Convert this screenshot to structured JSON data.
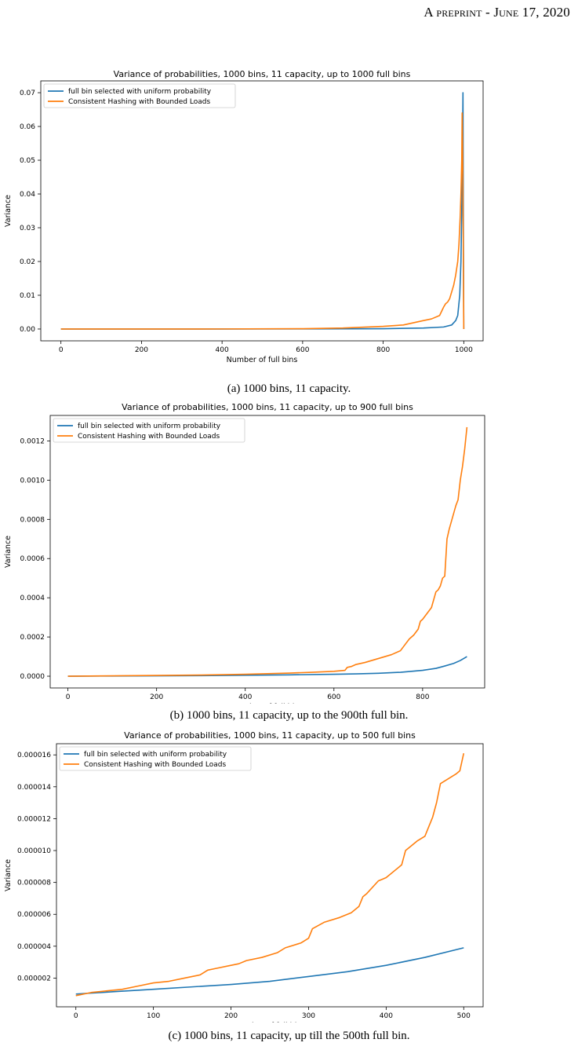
{
  "header": {
    "text": "A preprint - June 17, 2020"
  },
  "chart_data": [
    {
      "type": "line",
      "title": "Variance of probabilities, 1000 bins, 11 capacity, up to 1000 full bins",
      "xlabel": "Number of full bins",
      "ylabel": "Variance",
      "xlim": [
        -50,
        1048
      ],
      "ylim": [
        -0.0035,
        0.0735
      ],
      "xticks": [
        0,
        200,
        400,
        600,
        800,
        1000
      ],
      "xtick_labels": [
        "0",
        "200",
        "400",
        "600",
        "800",
        "1000"
      ],
      "yticks": [
        0.0,
        0.01,
        0.02,
        0.03,
        0.04,
        0.05,
        0.06,
        0.07
      ],
      "ytick_labels": [
        "0.00",
        "0.01",
        "0.02",
        "0.03",
        "0.04",
        "0.05",
        "0.06",
        "0.07"
      ],
      "legend": "top-left",
      "grid": false,
      "series": [
        {
          "name": "full bin selected with uniform probability",
          "color": "#1f77b4",
          "x": [
            0,
            200,
            400,
            600,
            800,
            900,
            950,
            970,
            980,
            985,
            990,
            993,
            995,
            997,
            998,
            999,
            1000
          ],
          "y": [
            0.0,
            0.0,
            1e-05,
            2e-05,
            0.0001,
            0.0003,
            0.0006,
            0.0012,
            0.0025,
            0.004,
            0.01,
            0.02,
            0.035,
            0.055,
            0.07,
            0.03,
            0.0
          ]
        },
        {
          "name": "Consistent Hashing with Bounded Loads",
          "color": "#ff7f0e",
          "x": [
            0,
            200,
            400,
            600,
            700,
            800,
            850,
            900,
            920,
            940,
            950,
            955,
            960,
            965,
            970,
            975,
            980,
            985,
            988,
            991,
            993,
            995,
            996,
            997,
            998,
            999,
            1000
          ],
          "y": [
            0.0,
            0.0,
            2e-05,
            0.0001,
            0.0003,
            0.0008,
            0.0012,
            0.0025,
            0.003,
            0.004,
            0.0065,
            0.0075,
            0.008,
            0.009,
            0.011,
            0.013,
            0.016,
            0.02,
            0.025,
            0.033,
            0.04,
            0.05,
            0.064,
            0.055,
            0.04,
            0.02,
            0.0
          ]
        }
      ]
    },
    {
      "type": "line",
      "title": "Variance of probabilities, 1000 bins, 11 capacity, up to 900 full bins",
      "xlabel": "Number of full bins",
      "ylabel": "Variance",
      "xlim": [
        -40,
        940
      ],
      "ylim": [
        -6e-05,
        0.00133
      ],
      "xticks": [
        0,
        200,
        400,
        600,
        800
      ],
      "xtick_labels": [
        "0",
        "200",
        "400",
        "600",
        "800"
      ],
      "yticks": [
        0.0,
        0.0002,
        0.0004,
        0.0006,
        0.0008,
        0.001,
        0.0012
      ],
      "ytick_labels": [
        "0.0000",
        "0.0002",
        "0.0004",
        "0.0006",
        "0.0008",
        "0.0010",
        "0.0012"
      ],
      "legend": "top-left",
      "grid": false,
      "series": [
        {
          "name": "full bin selected with uniform probability",
          "color": "#1f77b4",
          "x": [
            0,
            100,
            200,
            300,
            400,
            500,
            600,
            650,
            700,
            750,
            800,
            830,
            850,
            870,
            885,
            900
          ],
          "y": [
            0.0,
            1e-06,
            2e-06,
            3e-06,
            5e-06,
            7e-06,
            1e-05,
            1.2e-05,
            1.5e-05,
            2e-05,
            3e-05,
            4e-05,
            5.2e-05,
            6.5e-05,
            8e-05,
            0.0001
          ]
        },
        {
          "name": "Consistent Hashing with Bounded Loads",
          "color": "#ff7f0e",
          "x": [
            0,
            100,
            200,
            300,
            400,
            450,
            500,
            550,
            600,
            625,
            630,
            640,
            650,
            670,
            700,
            730,
            750,
            760,
            770,
            780,
            790,
            795,
            800,
            810,
            820,
            830,
            835,
            840,
            845,
            850,
            855,
            860,
            865,
            870,
            875,
            880,
            885,
            890,
            895,
            900
          ],
          "y": [
            0.0,
            2e-06,
            4e-06,
            6e-06,
            1e-05,
            1.3e-05,
            1.6e-05,
            2e-05,
            2.5e-05,
            3e-05,
            4.5e-05,
            5e-05,
            6e-05,
            7e-05,
            9e-05,
            0.00011,
            0.00013,
            0.00016,
            0.00019,
            0.00021,
            0.00024,
            0.00028,
            0.00029,
            0.00032,
            0.00035,
            0.00043,
            0.00044,
            0.00046,
            0.0005,
            0.00051,
            0.0007,
            0.00075,
            0.00079,
            0.00083,
            0.00087,
            0.0009,
            0.001,
            0.00107,
            0.00116,
            0.00127
          ]
        }
      ]
    },
    {
      "type": "line",
      "title": "Variance of probabilities, 1000 bins, 11 capacity, up to 500 full bins",
      "xlabel": "Number of full bins",
      "ylabel": "Variance",
      "xlim": [
        -25,
        525
      ],
      "ylim": [
        2e-07,
        1.67e-05
      ],
      "xticks": [
        0,
        100,
        200,
        300,
        400,
        500
      ],
      "xtick_labels": [
        "0",
        "100",
        "200",
        "300",
        "400",
        "500"
      ],
      "yticks": [
        2e-06,
        4e-06,
        6e-06,
        8e-06,
        1e-05,
        1.2e-05,
        1.4e-05,
        1.6e-05
      ],
      "ytick_labels": [
        "0.000002",
        "0.000004",
        "0.000006",
        "0.000008",
        "0.000010",
        "0.000012",
        "0.000014",
        "0.000016"
      ],
      "legend": "top-left",
      "grid": false,
      "series": [
        {
          "name": "full bin selected with uniform probability",
          "color": "#1f77b4",
          "x": [
            0,
            50,
            100,
            150,
            200,
            250,
            300,
            350,
            400,
            450,
            500
          ],
          "y": [
            1e-06,
            1.15e-06,
            1.3e-06,
            1.45e-06,
            1.6e-06,
            1.8e-06,
            2.1e-06,
            2.4e-06,
            2.8e-06,
            3.3e-06,
            3.9e-06
          ]
        },
        {
          "name": "Consistent Hashing with Bounded Loads",
          "color": "#ff7f0e",
          "x": [
            0,
            20,
            40,
            60,
            80,
            100,
            120,
            140,
            160,
            170,
            180,
            200,
            210,
            220,
            240,
            260,
            270,
            290,
            300,
            305,
            320,
            340,
            355,
            365,
            370,
            375,
            390,
            395,
            400,
            420,
            425,
            430,
            440,
            450,
            455,
            460,
            465,
            470,
            480,
            490,
            495,
            500
          ],
          "y": [
            9e-07,
            1.1e-06,
            1.2e-06,
            1.3e-06,
            1.5e-06,
            1.7e-06,
            1.8e-06,
            2e-06,
            2.2e-06,
            2.5e-06,
            2.6e-06,
            2.8e-06,
            2.9e-06,
            3.1e-06,
            3.3e-06,
            3.6e-06,
            3.9e-06,
            4.2e-06,
            4.5e-06,
            5.1e-06,
            5.5e-06,
            5.8e-06,
            6.1e-06,
            6.5e-06,
            7.1e-06,
            7.3e-06,
            8.1e-06,
            8.2e-06,
            8.3e-06,
            9.1e-06,
            1e-05,
            1.02e-05,
            1.06e-05,
            1.09e-05,
            1.15e-05,
            1.21e-05,
            1.3e-05,
            1.42e-05,
            1.45e-05,
            1.48e-05,
            1.5e-05,
            1.61e-05
          ]
        }
      ]
    }
  ],
  "captions": [
    "(a) 1000 bins, 11 capacity.",
    "(b) 1000 bins, 11 capacity, up to the 900th full bin.",
    "(c) 1000 bins, 11 capacity, up till the 500th full bin."
  ]
}
